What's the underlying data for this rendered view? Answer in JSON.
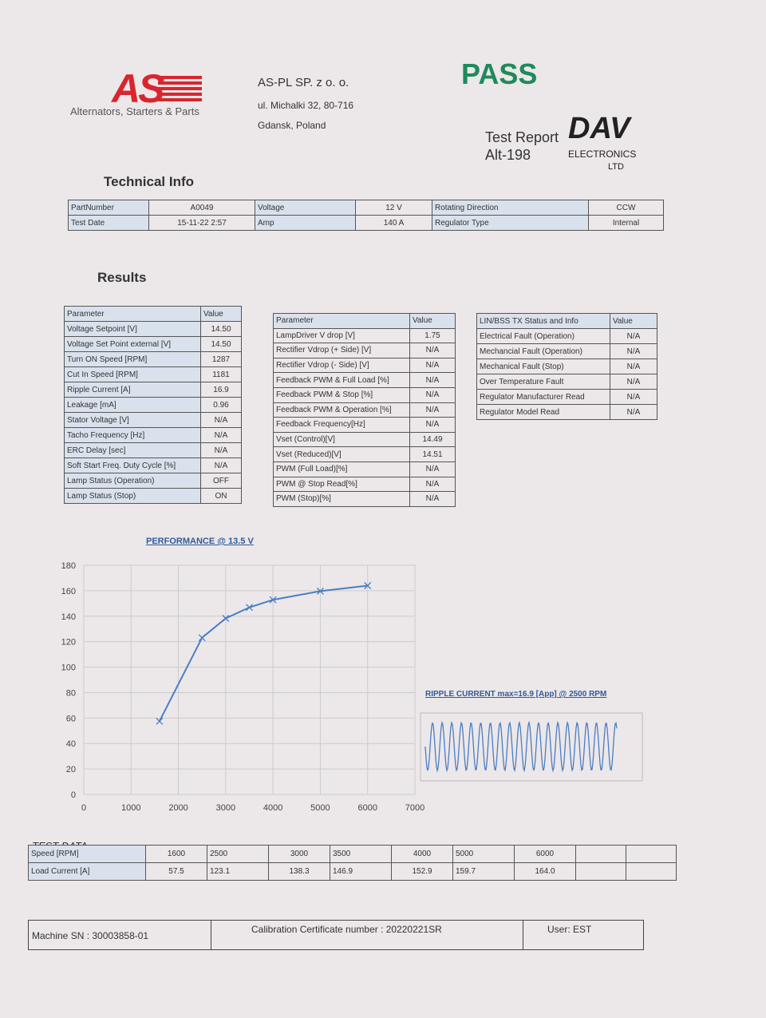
{
  "header": {
    "logo": "AS",
    "logo_tagline": "Alternators, Starters & Parts",
    "company": "AS-PL SP. z o. o.",
    "address_line1": "ul. Michalki 32, 80-716",
    "address_line2": "Gdansk, Poland",
    "status": "PASS",
    "report_title": "Test Report",
    "report_id": "Alt-198",
    "brand": "DAV",
    "brand_line1": "ELECTRONICS",
    "brand_line2": "LTD"
  },
  "technical_info": {
    "title": "Technical Info",
    "rows": [
      [
        "PartNumber",
        "A0049",
        "Voltage",
        "12 V",
        "Rotating Direction",
        "CCW"
      ],
      [
        "Test Date",
        "15-11-22 2:57",
        "Amp",
        "140 A",
        "Regulator Type",
        "Internal"
      ]
    ]
  },
  "results": {
    "title": "Results",
    "table1": {
      "header": [
        "Parameter",
        "Value"
      ],
      "rows": [
        [
          "Voltage Setpoint [V]",
          "14.50"
        ],
        [
          "Voltage Set Point external [V]",
          "14.50"
        ],
        [
          "Turn ON Speed [RPM]",
          "1287"
        ],
        [
          "Cut In Speed [RPM]",
          "1181"
        ],
        [
          "Ripple Current [A]",
          "16.9"
        ],
        [
          "Leakage [mA]",
          "0.96"
        ],
        [
          "Stator Voltage [V]",
          "N/A"
        ],
        [
          "Tacho Frequency [Hz]",
          "N/A"
        ],
        [
          "ERC Delay [sec]",
          "N/A"
        ],
        [
          "Soft Start Freq. Duty Cycle [%]",
          "N/A"
        ],
        [
          "Lamp Status (Operation)",
          "OFF"
        ],
        [
          "Lamp Status (Stop)",
          "ON"
        ]
      ]
    },
    "table2": {
      "header": [
        "Parameter",
        "Value"
      ],
      "rows": [
        [
          "LampDriver V drop [V]",
          "1.75"
        ],
        [
          "Rectifier Vdrop (+ Side) [V]",
          "N/A"
        ],
        [
          "Rectifier Vdrop (- Side) [V]",
          "N/A"
        ],
        [
          "Feedback PWM & Full Load [%]",
          "N/A"
        ],
        [
          "Feedback PWM & Stop [%]",
          "N/A"
        ],
        [
          "Feedback PWM & Operation [%]",
          "N/A"
        ],
        [
          "Feedback Frequency[Hz]",
          "N/A"
        ],
        [
          "Vset (Control)[V]",
          "14.49"
        ],
        [
          "Vset (Reduced)[V]",
          "14.51"
        ],
        [
          "PWM (Full Load)[%]",
          "N/A"
        ],
        [
          "PWM @ Stop Read[%]",
          "N/A"
        ],
        [
          "PWM (Stop)[%]",
          "N/A"
        ]
      ]
    },
    "table3": {
      "header": [
        "LIN/BSS TX Status and Info",
        "Value"
      ],
      "rows": [
        [
          "Electrical Fault (Operation)",
          "N/A"
        ],
        [
          "Mechancial Fault (Operation)",
          "N/A"
        ],
        [
          "Mechanical Fault (Stop)",
          "N/A"
        ],
        [
          "Over Temperature Fault",
          "N/A"
        ],
        [
          "Regulator Manufacturer Read",
          "N/A"
        ],
        [
          "Regulator Model Read",
          "N/A"
        ]
      ]
    }
  },
  "chart_data": {
    "type": "line",
    "title": "PERFORMANCE @ 13.5 V",
    "x": [
      1600,
      2500,
      3000,
      3500,
      4000,
      5000,
      6000
    ],
    "values": [
      57.5,
      123.1,
      138.3,
      146.9,
      152.9,
      159.7,
      164.0
    ],
    "color": "#4a7ec2",
    "xlim": [
      0,
      7000
    ],
    "xticks": [
      0,
      1000,
      2000,
      3000,
      4000,
      5000,
      6000,
      7000
    ],
    "ylim": [
      0,
      180
    ],
    "yticks": [
      0,
      20,
      40,
      60,
      80,
      100,
      120,
      140,
      160,
      180
    ],
    "grid": true
  },
  "ripple": {
    "title": "RIPPLE CURRENT  max=16.9 [App] @ 2500 RPM"
  },
  "test_data": {
    "title": "TEST DATA",
    "rows": [
      [
        "Speed  [RPM]",
        "1600",
        "2500",
        "3000",
        "3500",
        "4000",
        "5000",
        "6000"
      ],
      [
        "Load Current  [A]",
        "57.5",
        "123.1",
        "138.3",
        "146.9",
        "152.9",
        "159.7",
        "164.0"
      ]
    ]
  },
  "footer": {
    "machine_sn": "Machine SN : 30003858-01",
    "calibration": "Calibration Certificate number : 20220221SR",
    "user": "User:  EST"
  }
}
